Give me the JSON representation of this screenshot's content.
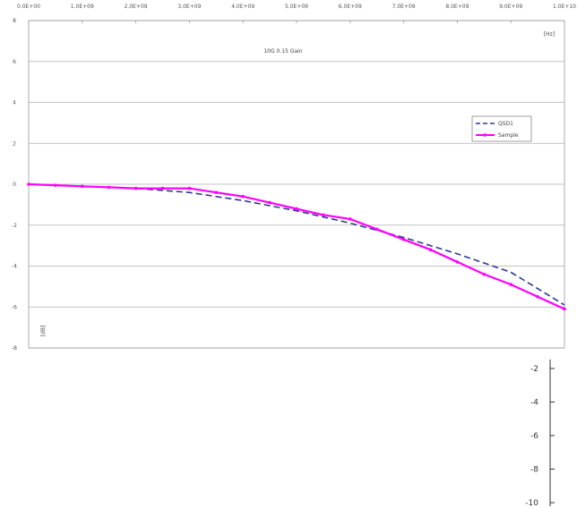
{
  "chart_data": [
    {
      "type": "line",
      "title": "",
      "xlabel": "",
      "ylabel": "",
      "x_unit_label": "[Hz]",
      "y_unit_label": "[dB]",
      "annotation": "10G 0.15 Gain",
      "xlim": [
        0,
        10000000000
      ],
      "ylim": [
        -8,
        8
      ],
      "x_ticks": [
        "0.0E+00",
        "1.0E+09",
        "2.0E+09",
        "3.0E+09",
        "4.0E+09",
        "5.0E+09",
        "6.0E+09",
        "7.0E+09",
        "8.0E+09",
        "9.0E+09",
        "1.0E+10"
      ],
      "y_ticks": [
        "8",
        "6",
        "4",
        "2",
        "0",
        "-2",
        "-4",
        "-6",
        "-8"
      ],
      "grid": "horizontal",
      "legend": "right",
      "series": [
        {
          "name": "QSD1",
          "color": "#2b3a8f",
          "style": "dashed",
          "x": [
            0,
            1000000000,
            2000000000,
            3000000000,
            4000000000,
            5000000000,
            6000000000,
            7000000000,
            8000000000,
            9000000000,
            10000000000
          ],
          "y": [
            0,
            -0.1,
            -0.2,
            -0.4,
            -0.8,
            -1.3,
            -1.9,
            -2.6,
            -3.4,
            -4.3,
            -5.9
          ]
        },
        {
          "name": "Sample",
          "color": "#ff00ff",
          "style": "solid-markers",
          "x": [
            0,
            500000000,
            1000000000,
            1500000000,
            2000000000,
            2500000000,
            3000000000,
            3500000000,
            4000000000,
            4500000000,
            5000000000,
            5500000000,
            6000000000,
            6500000000,
            7000000000,
            7500000000,
            8000000000,
            8500000000,
            9000000000,
            9500000000,
            10000000000
          ],
          "y": [
            0,
            -0.05,
            -0.1,
            -0.15,
            -0.2,
            -0.2,
            -0.2,
            -0.4,
            -0.6,
            -0.9,
            -1.2,
            -1.5,
            -1.7,
            -2.2,
            -2.7,
            -3.2,
            -3.8,
            -4.4,
            -4.9,
            -5.5,
            -6.1
          ]
        }
      ]
    },
    {
      "type": "line",
      "title": "",
      "xlabel": "",
      "ylabel": "",
      "y_ticks": [
        "-2",
        "-4",
        "-6",
        "-8",
        "-10"
      ],
      "series": []
    }
  ]
}
